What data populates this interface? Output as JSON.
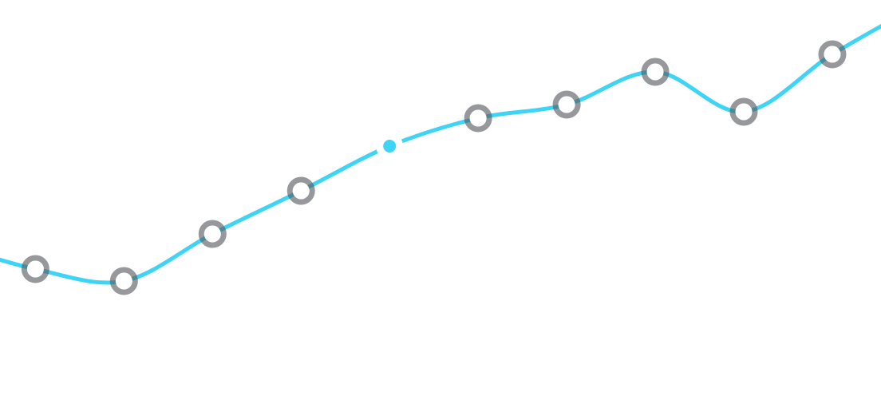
{
  "chart_data": {
    "type": "line",
    "x": [
      -1,
      0,
      1,
      2,
      3,
      4,
      5,
      6,
      7,
      8,
      9,
      10
    ],
    "series": [
      {
        "color": "#3dd4f5",
        "values": [
          191,
          159,
          144,
          203,
          257,
          313,
          348,
          365,
          406,
          356,
          428,
          491
        ]
      }
    ],
    "xlim": [
      -0.4,
      9.55
    ],
    "ylim": [
      0,
      496
    ],
    "marker_color": "#55585f",
    "highlight_index": 5
  }
}
